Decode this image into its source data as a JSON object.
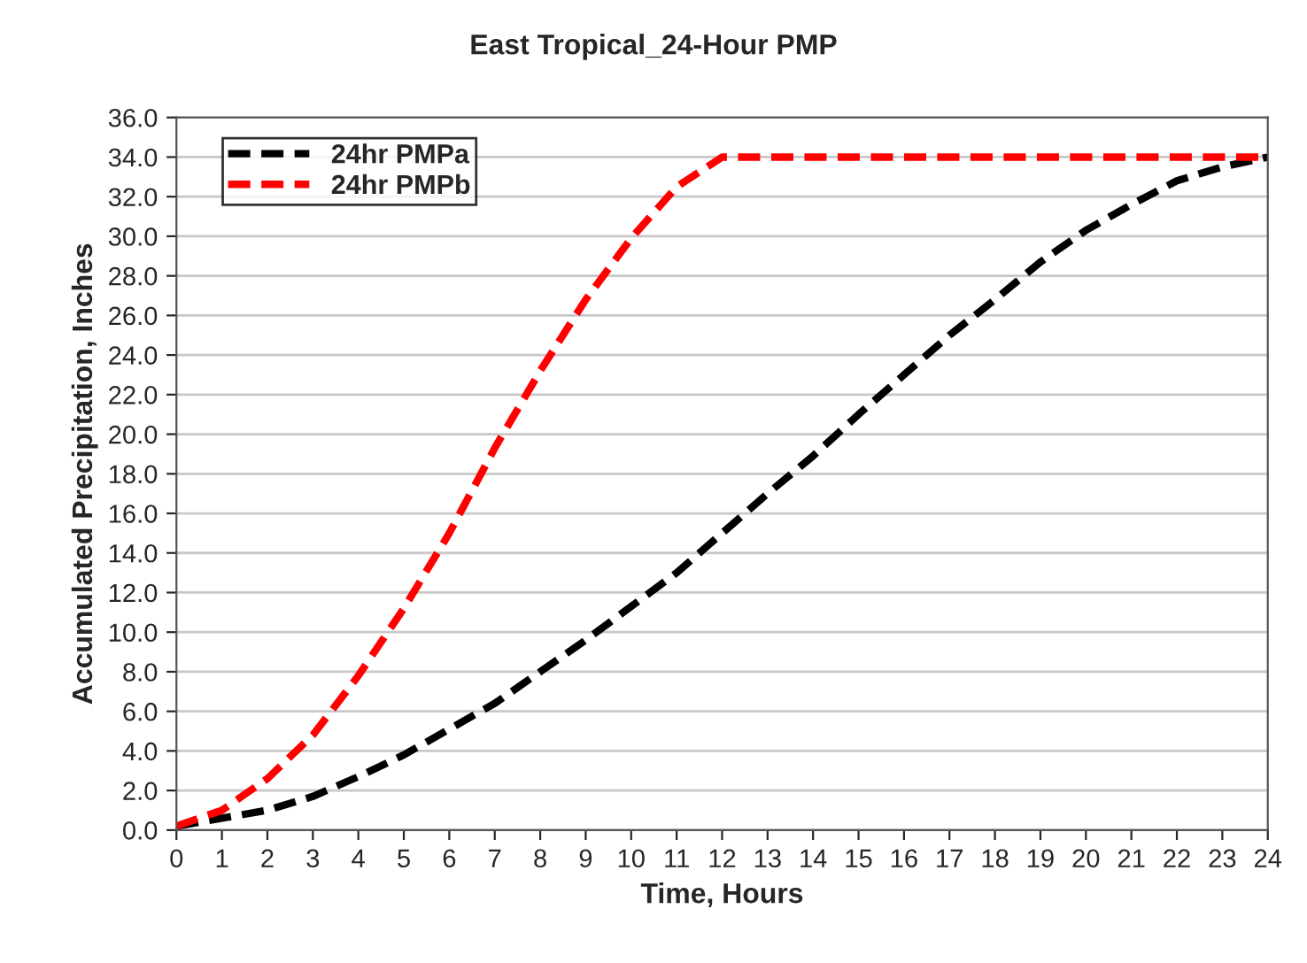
{
  "chart_data": {
    "type": "line",
    "title": "East Tropical_24-Hour PMP",
    "xlabel": "Time, Hours",
    "ylabel": "Accumulated Precipitation, Inches",
    "x": [
      0,
      1,
      2,
      3,
      4,
      5,
      6,
      7,
      8,
      9,
      10,
      11,
      12,
      13,
      14,
      15,
      16,
      17,
      18,
      19,
      20,
      21,
      22,
      23,
      24
    ],
    "series": [
      {
        "name": "24hr PMPa",
        "color": "#000000",
        "values": [
          0.2,
          0.6,
          1.0,
          1.7,
          2.7,
          3.8,
          5.1,
          6.4,
          8.0,
          9.6,
          11.3,
          13.0,
          15.0,
          17.0,
          18.9,
          21.0,
          23.0,
          25.0,
          26.8,
          28.7,
          30.3,
          31.6,
          32.8,
          33.5,
          34.0
        ]
      },
      {
        "name": "24hr PMPb",
        "color": "#ff0000",
        "values": [
          0.2,
          1.0,
          2.6,
          4.8,
          7.8,
          11.2,
          15.0,
          19.3,
          23.2,
          26.8,
          29.9,
          32.5,
          34.0,
          34.0,
          34.0,
          34.0,
          34.0,
          34.0,
          34.0,
          34.0,
          34.0,
          34.0,
          34.0,
          34.0,
          34.0
        ]
      }
    ],
    "xlim": [
      0,
      24
    ],
    "xticks": [
      0,
      1,
      2,
      3,
      4,
      5,
      6,
      7,
      8,
      9,
      10,
      11,
      12,
      13,
      14,
      15,
      16,
      17,
      18,
      19,
      20,
      21,
      22,
      23,
      24
    ],
    "ylim": [
      0,
      36
    ],
    "yticks": [
      {
        "value": 0,
        "label": "0.0"
      },
      {
        "value": 2,
        "label": "2.0"
      },
      {
        "value": 4,
        "label": "4.0"
      },
      {
        "value": 6,
        "label": "6.0"
      },
      {
        "value": 8,
        "label": "8.0"
      },
      {
        "value": 10,
        "label": "10.0"
      },
      {
        "value": 12,
        "label": "12.0"
      },
      {
        "value": 14,
        "label": "14.0"
      },
      {
        "value": 16,
        "label": "16.0"
      },
      {
        "value": 18,
        "label": "18.0"
      },
      {
        "value": 20,
        "label": "20.0"
      },
      {
        "value": 22,
        "label": "22.0"
      },
      {
        "value": 24,
        "label": "24.0"
      },
      {
        "value": 26,
        "label": "26.0"
      },
      {
        "value": 28,
        "label": "28.0"
      },
      {
        "value": 30,
        "label": "30.0"
      },
      {
        "value": 32,
        "label": "32.0"
      },
      {
        "value": 34,
        "label": "34.0"
      },
      {
        "value": 36,
        "label": "36.0"
      }
    ],
    "grid": "y",
    "legend": "top left",
    "marker": "none",
    "line_style": "dashed"
  }
}
